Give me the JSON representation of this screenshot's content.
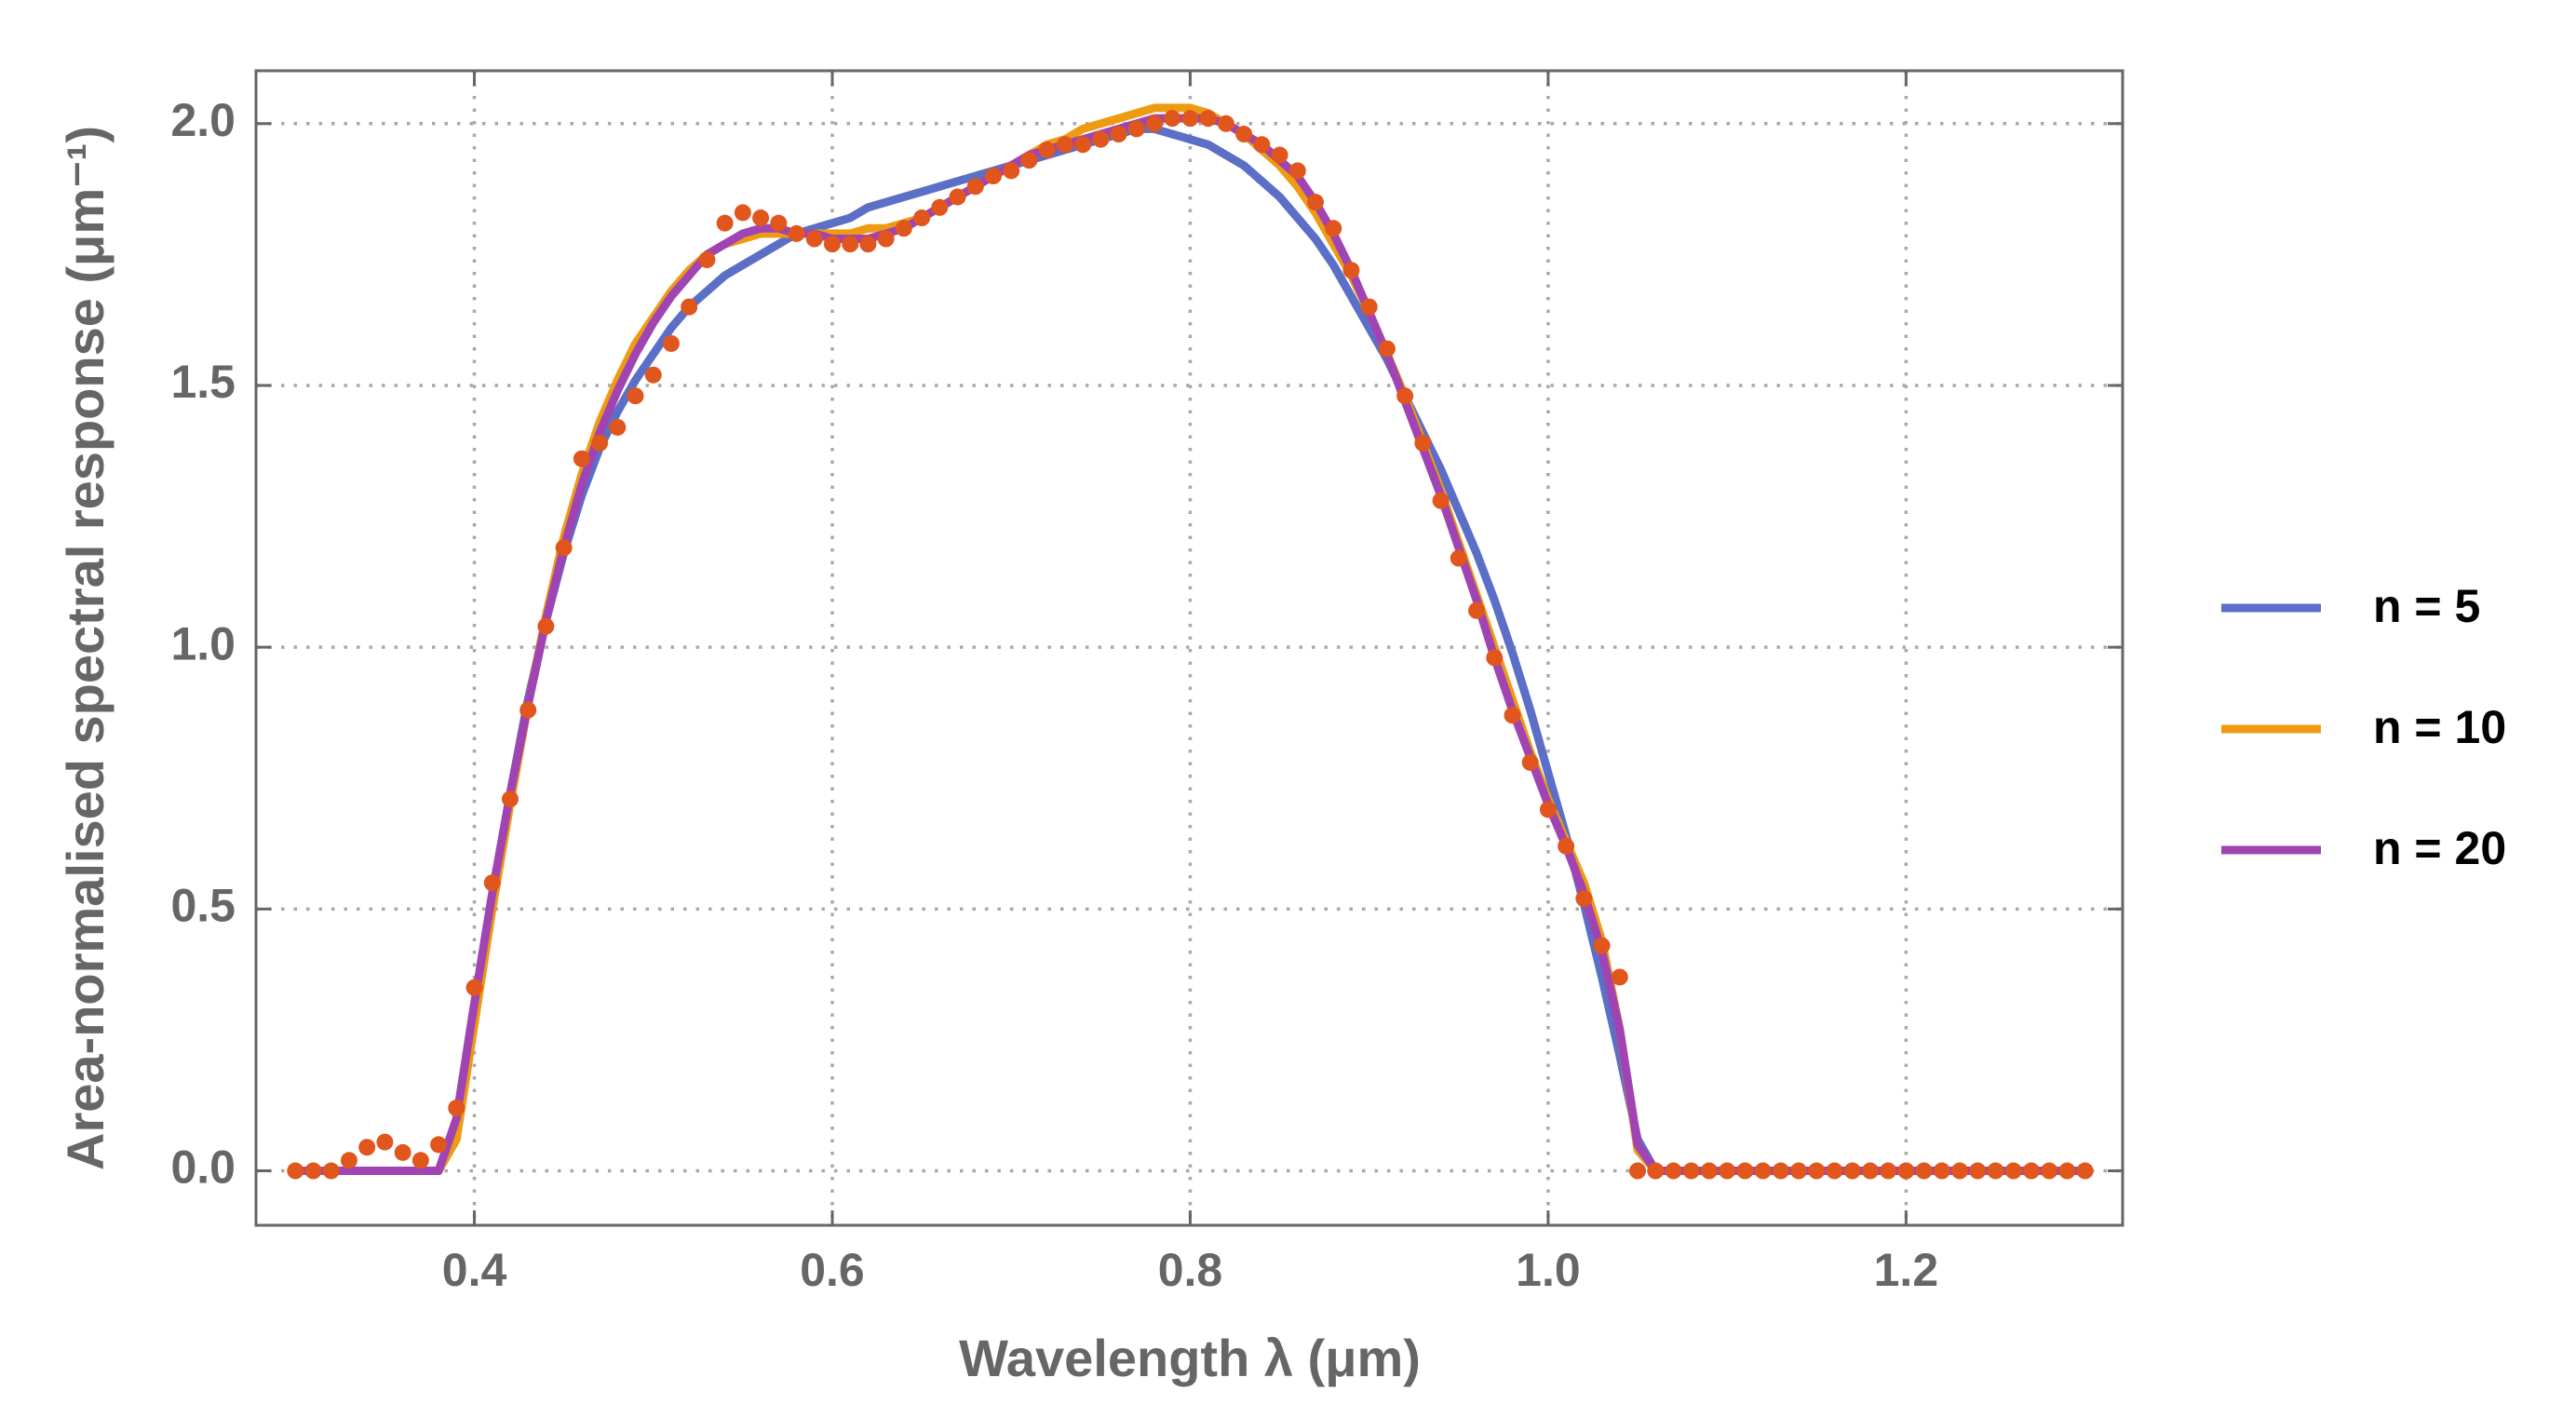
{
  "chart_data": {
    "type": "line",
    "xlabel": "Wavelength λ (μm)",
    "ylabel": "Area-normalised spectral response (μm⁻¹)",
    "xlim": [
      0.278,
      1.321
    ],
    "ylim": [
      -0.104,
      2.101
    ],
    "xticks": [
      0.4,
      0.6,
      0.8,
      {
        "value": 1,
        "label": "1.0"
      },
      1.2
    ],
    "yticks": [
      {
        "value": 0,
        "label": "0.0"
      },
      0.5,
      {
        "value": 1,
        "label": "1.0"
      },
      1.5,
      {
        "value": 2,
        "label": "2.0"
      }
    ],
    "grid": true,
    "legend": "right",
    "x": [
      0.3,
      0.31,
      0.32,
      0.33,
      0.34,
      0.35,
      0.36,
      0.37,
      0.38,
      0.39,
      0.4,
      0.41,
      0.42,
      0.43,
      0.44,
      0.45,
      0.46,
      0.47,
      0.48,
      0.49,
      0.5,
      0.51,
      0.52,
      0.53,
      0.54,
      0.55,
      0.56,
      0.57,
      0.58,
      0.59,
      0.6,
      0.61,
      0.62,
      0.63,
      0.64,
      0.65,
      0.66,
      0.67,
      0.68,
      0.69,
      0.7,
      0.71,
      0.72,
      0.73,
      0.74,
      0.75,
      0.76,
      0.77,
      0.78,
      0.79,
      0.8,
      0.81,
      0.82,
      0.83,
      0.84,
      0.85,
      0.86,
      0.87,
      0.88,
      0.89,
      0.9,
      0.91,
      0.92,
      0.93,
      0.94,
      0.95,
      0.96,
      0.97,
      0.98,
      0.99,
      1,
      1.01,
      1.02,
      1.03,
      1.04,
      1.05,
      1.06,
      1.07,
      1.08,
      1.09,
      1.1,
      1.11,
      1.12,
      1.13,
      1.14,
      1.15,
      1.16,
      1.17,
      1.18,
      1.19,
      1.2,
      1.21,
      1.22,
      1.23,
      1.24,
      1.25,
      1.26,
      1.27,
      1.28,
      1.29,
      1.3
    ],
    "series": [
      {
        "name": "n = 5",
        "color": "#5b6fc6",
        "mode": "lines",
        "values": [
          0,
          0,
          0,
          0,
          0,
          0,
          0,
          0,
          0,
          0.08,
          0.3,
          0.52,
          0.72,
          0.9,
          1.05,
          1.18,
          1.29,
          1.38,
          1.45,
          1.51,
          1.56,
          1.61,
          1.65,
          1.68,
          1.71,
          1.73,
          1.75,
          1.77,
          1.79,
          1.8,
          1.81,
          1.82,
          1.84,
          1.85,
          1.86,
          1.87,
          1.88,
          1.89,
          1.9,
          1.91,
          1.92,
          1.93,
          1.94,
          1.95,
          1.96,
          1.97,
          1.98,
          1.99,
          1.99,
          1.98,
          1.97,
          1.96,
          1.94,
          1.92,
          1.89,
          1.86,
          1.82,
          1.78,
          1.73,
          1.67,
          1.61,
          1.55,
          1.48,
          1.41,
          1.34,
          1.26,
          1.18,
          1.09,
          0.99,
          0.88,
          0.76,
          0.64,
          0.51,
          0.37,
          0.22,
          0.06,
          0,
          0,
          0,
          0,
          0,
          0,
          0,
          0,
          0,
          0,
          0,
          0,
          0,
          0,
          0,
          0,
          0,
          0,
          0,
          0,
          0,
          0,
          0,
          0,
          0
        ]
      },
      {
        "name": "n = 10",
        "color": "#ee9b12",
        "mode": "lines",
        "values": [
          0,
          0,
          0,
          0,
          0,
          0,
          0,
          0,
          0,
          0.06,
          0.28,
          0.5,
          0.7,
          0.89,
          1.06,
          1.21,
          1.33,
          1.43,
          1.51,
          1.58,
          1.63,
          1.68,
          1.72,
          1.75,
          1.77,
          1.78,
          1.79,
          1.79,
          1.79,
          1.79,
          1.79,
          1.79,
          1.8,
          1.8,
          1.81,
          1.82,
          1.84,
          1.86,
          1.88,
          1.9,
          1.92,
          1.94,
          1.96,
          1.97,
          1.99,
          2,
          2.01,
          2.02,
          2.03,
          2.03,
          2.03,
          2.02,
          2,
          1.98,
          1.95,
          1.92,
          1.88,
          1.83,
          1.77,
          1.71,
          1.64,
          1.56,
          1.48,
          1.39,
          1.3,
          1.2,
          1.1,
          1,
          0.9,
          0.8,
          0.71,
          0.63,
          0.55,
          0.44,
          0.27,
          0.04,
          0,
          0,
          0,
          0,
          0,
          0,
          0,
          0,
          0,
          0,
          0,
          0,
          0,
          0,
          0,
          0,
          0,
          0,
          0,
          0,
          0,
          0,
          0,
          0,
          0
        ]
      },
      {
        "name": "n = 20",
        "color": "#a044b4",
        "mode": "lines",
        "values": [
          0,
          0,
          0,
          0,
          0,
          0,
          0,
          0,
          0,
          0.1,
          0.32,
          0.53,
          0.72,
          0.89,
          1.05,
          1.19,
          1.31,
          1.41,
          1.49,
          1.56,
          1.62,
          1.67,
          1.71,
          1.75,
          1.77,
          1.79,
          1.8,
          1.8,
          1.79,
          1.79,
          1.78,
          1.78,
          1.78,
          1.79,
          1.8,
          1.82,
          1.84,
          1.86,
          1.88,
          1.9,
          1.92,
          1.94,
          1.95,
          1.96,
          1.97,
          1.98,
          1.99,
          2,
          2.01,
          2.01,
          2.01,
          2.01,
          2,
          1.98,
          1.96,
          1.93,
          1.9,
          1.85,
          1.79,
          1.72,
          1.64,
          1.56,
          1.47,
          1.38,
          1.29,
          1.19,
          1.09,
          0.98,
          0.88,
          0.79,
          0.7,
          0.62,
          0.53,
          0.42,
          0.27,
          0.05,
          0,
          0,
          0,
          0,
          0,
          0,
          0,
          0,
          0,
          0,
          0,
          0,
          0,
          0,
          0,
          0,
          0,
          0,
          0,
          0,
          0,
          0,
          0,
          0,
          0
        ]
      },
      {
        "color": "#e0561c",
        "mode": "markers",
        "values": [
          0,
          0,
          0,
          0.02,
          0.045,
          0.055,
          0.035,
          0.02,
          0.05,
          0.12,
          0.35,
          0.55,
          0.71,
          0.88,
          1.04,
          1.19,
          1.36,
          1.39,
          1.42,
          1.48,
          1.52,
          1.58,
          1.65,
          1.74,
          1.81,
          1.83,
          1.82,
          1.81,
          1.79,
          1.78,
          1.77,
          1.77,
          1.77,
          1.78,
          1.8,
          1.82,
          1.84,
          1.86,
          1.88,
          1.9,
          1.91,
          1.93,
          1.95,
          1.96,
          1.96,
          1.97,
          1.98,
          1.99,
          2,
          2.01,
          2.01,
          2.01,
          2,
          1.98,
          1.96,
          1.94,
          1.91,
          1.85,
          1.8,
          1.72,
          1.65,
          1.57,
          1.48,
          1.39,
          1.28,
          1.17,
          1.07,
          0.98,
          0.87,
          0.78,
          0.69,
          0.62,
          0.52,
          0.43,
          0.37,
          0,
          0,
          0,
          0,
          0,
          0,
          0,
          0,
          0,
          0,
          0,
          0,
          0,
          0,
          0,
          0,
          0,
          0,
          0,
          0,
          0,
          0,
          0,
          0,
          0,
          0
        ]
      }
    ]
  }
}
